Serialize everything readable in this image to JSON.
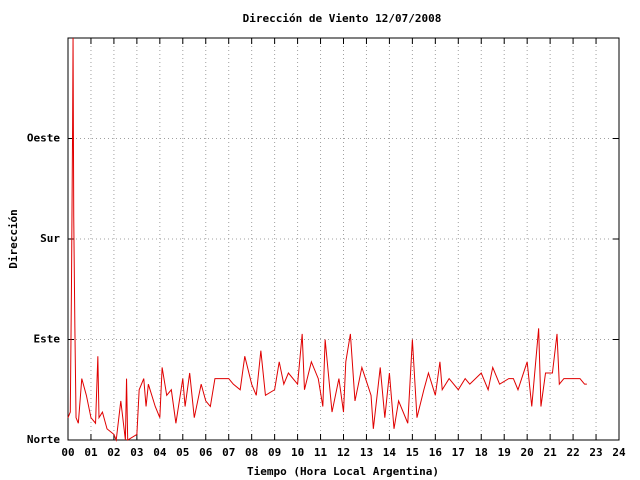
{
  "chart_data": {
    "type": "line",
    "title": "Dirección de Viento 12/07/2008",
    "xlabel": "Tiempo (Hora Local Argentina)",
    "ylabel": "Dirección",
    "color": "#e00000",
    "grid": true,
    "xlim": [
      0,
      24
    ],
    "xticks": [
      {
        "value": 0,
        "label": "00"
      },
      {
        "value": 1,
        "label": "01"
      },
      {
        "value": 2,
        "label": "02"
      },
      {
        "value": 3,
        "label": "03"
      },
      {
        "value": 4,
        "label": "04"
      },
      {
        "value": 5,
        "label": "05"
      },
      {
        "value": 6,
        "label": "06"
      },
      {
        "value": 7,
        "label": "07"
      },
      {
        "value": 8,
        "label": "08"
      },
      {
        "value": 9,
        "label": "09"
      },
      {
        "value": 10,
        "label": "10"
      },
      {
        "value": 11,
        "label": "11"
      },
      {
        "value": 12,
        "label": "12"
      },
      {
        "value": 13,
        "label": "13"
      },
      {
        "value": 14,
        "label": "14"
      },
      {
        "value": 15,
        "label": "15"
      },
      {
        "value": 16,
        "label": "16"
      },
      {
        "value": 17,
        "label": "17"
      },
      {
        "value": 18,
        "label": "18"
      },
      {
        "value": 19,
        "label": "19"
      },
      {
        "value": 20,
        "label": "20"
      },
      {
        "value": 21,
        "label": "21"
      },
      {
        "value": 22,
        "label": "22"
      },
      {
        "value": 23,
        "label": "23"
      },
      {
        "value": 24,
        "label": "24"
      }
    ],
    "ylim": [
      0,
      360
    ],
    "yticks": [
      {
        "value": 0,
        "label": "Norte"
      },
      {
        "value": 90,
        "label": "Este"
      },
      {
        "value": 180,
        "label": "Sur"
      },
      {
        "value": 270,
        "label": "Oeste"
      }
    ],
    "x": [
      0.0,
      0.1,
      0.15,
      0.2,
      0.22,
      0.25,
      0.3,
      0.35,
      0.45,
      0.6,
      0.8,
      1.0,
      1.2,
      1.3,
      1.35,
      1.5,
      1.7,
      2.0,
      2.1,
      2.3,
      2.5,
      2.55,
      2.6,
      3.0,
      3.1,
      3.3,
      3.4,
      3.5,
      3.8,
      4.0,
      4.1,
      4.3,
      4.5,
      4.7,
      5.0,
      5.1,
      5.3,
      5.5,
      5.8,
      6.0,
      6.2,
      6.4,
      7.0,
      7.2,
      7.5,
      7.7,
      8.0,
      8.2,
      8.4,
      8.6,
      9.0,
      9.2,
      9.4,
      9.6,
      10.0,
      10.2,
      10.3,
      10.6,
      10.9,
      11.1,
      11.2,
      11.5,
      11.8,
      12.0,
      12.1,
      12.3,
      12.5,
      12.8,
      13.2,
      13.3,
      13.6,
      13.8,
      14.0,
      14.2,
      14.4,
      14.8,
      15.0,
      15.2,
      15.5,
      15.7,
      16.0,
      16.2,
      16.3,
      16.6,
      17.0,
      17.3,
      17.5,
      18.0,
      18.3,
      18.5,
      18.8,
      19.2,
      19.4,
      19.6,
      20.0,
      20.2,
      20.5,
      20.6,
      20.8,
      21.1,
      21.3,
      21.4,
      21.6,
      22.0,
      22.3,
      22.5,
      22.6
    ],
    "values": [
      20,
      25,
      135,
      280,
      360,
      200,
      100,
      20,
      15,
      55,
      40,
      20,
      15,
      75,
      20,
      25,
      10,
      5,
      0,
      35,
      0,
      55,
      0,
      5,
      45,
      55,
      30,
      50,
      30,
      20,
      65,
      40,
      45,
      15,
      55,
      30,
      60,
      20,
      50,
      35,
      30,
      55,
      55,
      50,
      45,
      75,
      50,
      40,
      80,
      40,
      45,
      70,
      50,
      60,
      50,
      95,
      45,
      70,
      55,
      30,
      90,
      25,
      55,
      25,
      70,
      95,
      35,
      65,
      40,
      10,
      65,
      20,
      60,
      10,
      35,
      15,
      90,
      20,
      45,
      60,
      40,
      70,
      45,
      55,
      45,
      55,
      50,
      60,
      45,
      65,
      50,
      55,
      55,
      45,
      70,
      30,
      100,
      30,
      60,
      60,
      95,
      50,
      55,
      55,
      55,
      50,
      50
    ]
  }
}
